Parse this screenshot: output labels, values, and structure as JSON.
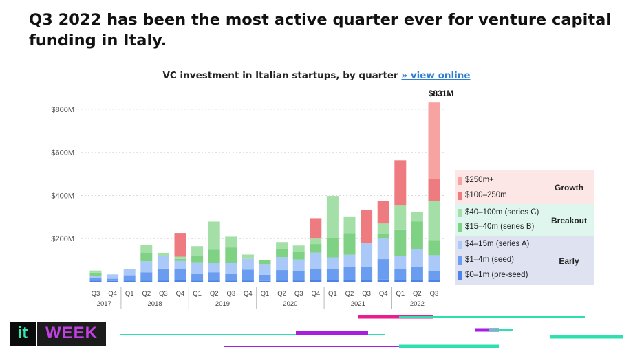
{
  "headline": "Q3 2022 has been the most active quarter ever for venture capital funding in Italy.",
  "chart_title": "VC investment in Italian startups, by quarter",
  "chart_link": "» view online",
  "logo": {
    "it": "it",
    "week": "WEEK"
  },
  "colors": {
    "s250plus": "#f6a3a2",
    "s100_250": "#ee7b7f",
    "s40_100": "#a4dfa7",
    "s15_40": "#7fd183",
    "s4_15": "#aac8f8",
    "s1_4": "#6a9cf0",
    "s0_1": "#4b83e6",
    "bg_growth": "#fce6e6",
    "bg_breakout": "#dff6ee",
    "bg_early": "#dfe3f1",
    "decor_pink": "#e91e8c",
    "decor_purple": "#a81ee0",
    "decor_teal": "#2ee0b0"
  },
  "legend": {
    "groups": [
      {
        "name": "Growth",
        "items": [
          {
            "label": "$250m+",
            "color": "#f6a3a2"
          },
          {
            "label": "$100–250m",
            "color": "#ee7b7f"
          }
        ]
      },
      {
        "name": "Breakout",
        "items": [
          {
            "label": "$40–100m (series C)",
            "color": "#a4dfa7"
          },
          {
            "label": "$15–40m (series B)",
            "color": "#7fd183"
          }
        ]
      },
      {
        "name": "Early",
        "items": [
          {
            "label": "$4–15m (series A)",
            "color": "#aac8f8"
          },
          {
            "label": "$1–4m (seed)",
            "color": "#6a9cf0"
          },
          {
            "label": "$0–1m (pre-seed)",
            "color": "#4b83e6"
          }
        ]
      }
    ]
  },
  "chart_data": {
    "type": "bar",
    "stacked": true,
    "title": "VC investment in Italian startups, by quarter",
    "ylim": [
      0,
      840
    ],
    "yticks": [
      200,
      400,
      600,
      800
    ],
    "ytick_labels": [
      "$200M",
      "$400M",
      "$600M",
      "$800M"
    ],
    "grid": true,
    "legend_position": "right",
    "annotation": {
      "category_index": 20,
      "label": "$831M"
    },
    "categories": [
      "Q3",
      "Q4",
      "Q1",
      "Q2",
      "Q3",
      "Q4",
      "Q1",
      "Q2",
      "Q3",
      "Q4",
      "Q1",
      "Q2",
      "Q3",
      "Q4",
      "Q1",
      "Q2",
      "Q3",
      "Q4",
      "Q1",
      "Q2",
      "Q3"
    ],
    "years": [
      {
        "label": "2017",
        "start": 0,
        "end": 1
      },
      {
        "label": "2018",
        "start": 2,
        "end": 5
      },
      {
        "label": "2019",
        "start": 6,
        "end": 9
      },
      {
        "label": "2020",
        "start": 10,
        "end": 13
      },
      {
        "label": "2021",
        "start": 14,
        "end": 17
      },
      {
        "label": "2022",
        "start": 18,
        "end": 20
      }
    ],
    "series": [
      {
        "name": "$0–1m (pre-seed)",
        "color": "#4b83e6",
        "values": [
          5,
          4,
          5,
          5,
          6,
          8,
          5,
          6,
          5,
          6,
          4,
          6,
          6,
          8,
          8,
          8,
          8,
          10,
          8,
          8,
          8
        ]
      },
      {
        "name": "$1–4m (seed)",
        "color": "#6a9cf0",
        "values": [
          12,
          10,
          25,
          38,
          55,
          50,
          30,
          38,
          32,
          50,
          28,
          48,
          42,
          52,
          50,
          62,
          60,
          95,
          50,
          62,
          40
        ]
      },
      {
        "name": "$4–15m (series A)",
        "color": "#aac8f8",
        "values": [
          10,
          20,
          30,
          52,
          58,
          38,
          55,
          45,
          52,
          50,
          50,
          60,
          55,
          75,
          55,
          55,
          110,
          95,
          60,
          80,
          75
        ]
      },
      {
        "name": "$15–40m (series B)",
        "color": "#7fd183",
        "values": [
          15,
          0,
          0,
          40,
          0,
          10,
          30,
          60,
          70,
          0,
          20,
          40,
          35,
          40,
          90,
          100,
          0,
          20,
          125,
          130,
          70
        ]
      },
      {
        "name": "$40–100m (series C)",
        "color": "#a4dfa7",
        "values": [
          10,
          0,
          0,
          35,
          15,
          10,
          45,
          130,
          50,
          20,
          0,
          30,
          30,
          25,
          195,
          75,
          0,
          50,
          110,
          45,
          180
        ]
      },
      {
        "name": "$100–250m",
        "color": "#ee7b7f",
        "values": [
          0,
          0,
          0,
          0,
          0,
          110,
          0,
          0,
          0,
          0,
          0,
          0,
          0,
          95,
          0,
          0,
          155,
          105,
          210,
          0,
          105
        ]
      },
      {
        "name": "$250m+",
        "color": "#f6a3a2",
        "values": [
          0,
          0,
          0,
          0,
          0,
          0,
          0,
          0,
          0,
          0,
          0,
          0,
          0,
          0,
          0,
          0,
          0,
          0,
          0,
          0,
          353
        ]
      }
    ]
  }
}
